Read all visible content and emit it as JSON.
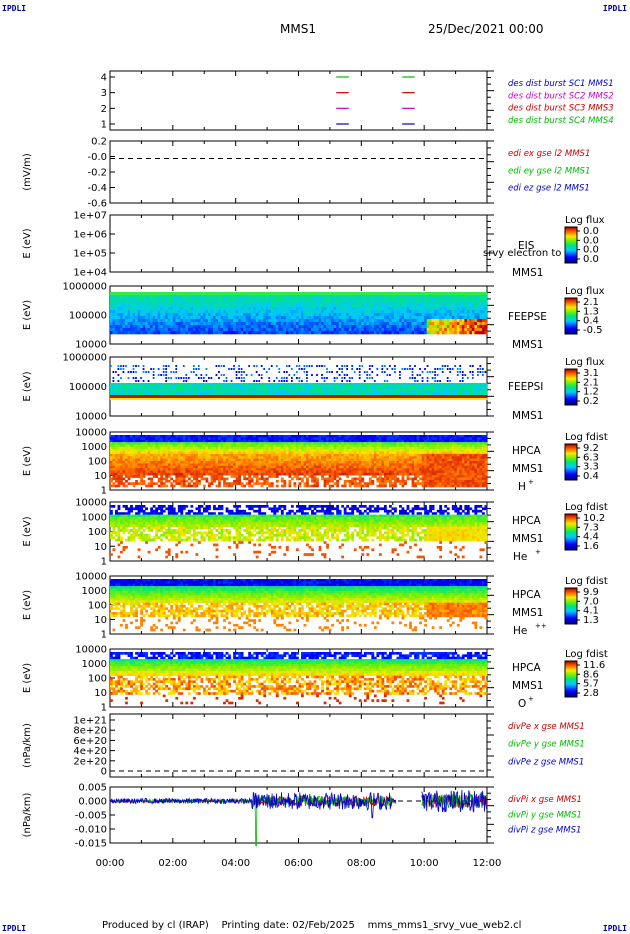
{
  "corner_labels": {
    "tl": "IPDLI",
    "tr": "IPDLI",
    "bl": "IPDLI",
    "br": "IPDLI"
  },
  "header": {
    "spacecraft": "MMS1",
    "date": "25/Dec/2021 00:00"
  },
  "footer": {
    "text": "Produced by cl (IRAP)    Printing date: 02/Feb/2025    mms_mms1_srvy_vue_web2.cl"
  },
  "x_ticks": [
    "00:00",
    "02:00",
    "04:00",
    "06:00",
    "08:00",
    "10:00",
    "12:00"
  ],
  "panels": [
    {
      "id": "burst",
      "ylabel": "",
      "yticks": [
        "4",
        "3",
        "2",
        "1"
      ],
      "legend": [
        {
          "text": "des dist burst SC1 MMS1",
          "color": "#0000cc"
        },
        {
          "text": "des dist burst SC2 MMS2",
          "color": "#cc00cc"
        },
        {
          "text": "des dist burst SC3 MMS3",
          "color": "#cc0000"
        },
        {
          "text": "des dist burst SC4 MMS4",
          "color": "#00bb00"
        }
      ]
    },
    {
      "id": "edi",
      "ylabel": "(mV/m)",
      "yticks": [
        "0.2",
        "-0.0",
        "-0.2",
        "-0.4",
        "-0.6"
      ],
      "legend": [
        {
          "text": "edi ex gse l2 MMS1",
          "color": "#cc0000"
        },
        {
          "text": "edi ey gse l2 MMS1",
          "color": "#00bb00"
        },
        {
          "text": "edi ez gse l2 MMS1",
          "color": "#0000cc"
        }
      ]
    },
    {
      "id": "eis",
      "ylabel": "E (eV)",
      "yticks": [
        "1e+07",
        "1e+06",
        "1e+05",
        "1e+04"
      ],
      "labels": [
        "EIS",
        "srvy electron to",
        "MMS1"
      ],
      "colorbar": {
        "title": "Log flux",
        "ticks": [
          "0.0",
          "0.0",
          "0.0",
          "0.0"
        ]
      }
    },
    {
      "id": "feeps_e",
      "ylabel": "E (eV)",
      "yticks": [
        "1000000",
        "100000",
        "10000"
      ],
      "labels": [
        "FEEPSE",
        "MMS1"
      ],
      "colorbar": {
        "title": "Log flux",
        "ticks": [
          "2.1",
          "1.3",
          "0.4",
          "-0.5"
        ]
      }
    },
    {
      "id": "feeps_i",
      "ylabel": "E (eV)",
      "yticks": [
        "1000000",
        "100000",
        "10000"
      ],
      "labels": [
        "FEEPSI",
        "MMS1"
      ],
      "colorbar": {
        "title": "Log flux",
        "ticks": [
          "3.1",
          "2.1",
          "1.2",
          "0.2"
        ]
      }
    },
    {
      "id": "hpca_h",
      "ylabel": "E (eV)",
      "yticks": [
        "10000",
        "1000",
        "100",
        "10",
        "1"
      ],
      "labels": [
        "HPCA",
        "MMS1",
        "H",
        "+"
      ],
      "colorbar": {
        "title": "Log fdist",
        "ticks": [
          "9.2",
          "6.3",
          "3.3",
          "0.4"
        ]
      }
    },
    {
      "id": "hpca_he1",
      "ylabel": "E (eV)",
      "yticks": [
        "10000",
        "1000",
        "100",
        "10",
        "1"
      ],
      "labels": [
        "HPCA",
        "MMS1",
        "He",
        "+"
      ],
      "colorbar": {
        "title": "Log fdist",
        "ticks": [
          "10.2",
          "7.3",
          "4.4",
          "1.6"
        ]
      }
    },
    {
      "id": "hpca_he2",
      "ylabel": "E (eV)",
      "yticks": [
        "10000",
        "1000",
        "100",
        "10",
        "1"
      ],
      "labels": [
        "HPCA",
        "MMS1",
        "He",
        "++"
      ],
      "colorbar": {
        "title": "Log fdist",
        "ticks": [
          "9.9",
          "7.0",
          "4.1",
          "1.3"
        ]
      }
    },
    {
      "id": "hpca_o",
      "ylabel": "E (eV)",
      "yticks": [
        "10000",
        "1000",
        "100",
        "10",
        "1"
      ],
      "labels": [
        "HPCA",
        "MMS1",
        "O",
        "+"
      ],
      "colorbar": {
        "title": "Log fdist",
        "ticks": [
          "11.6",
          "8.6",
          "5.7",
          "2.8"
        ]
      }
    },
    {
      "id": "divpe",
      "ylabel": "(nPa/km)",
      "yticks": [
        "1e+21",
        "8e+20",
        "6e+20",
        "4e+20",
        "2e+20",
        "0"
      ],
      "legend": [
        {
          "text": "divPe x gse MMS1",
          "color": "#cc0000"
        },
        {
          "text": "divPe y gse MMS1",
          "color": "#00bb00"
        },
        {
          "text": "divPe z gse MMS1",
          "color": "#0000cc"
        }
      ]
    },
    {
      "id": "divpi",
      "ylabel": "(nPa/km)",
      "yticks": [
        "0.005",
        "0.000",
        "-0.005",
        "-0.010",
        "-0.015"
      ],
      "legend": [
        {
          "text": "divPi x gse MMS1",
          "color": "#cc0000"
        },
        {
          "text": "divPi y gse MMS1",
          "color": "#00bb00"
        },
        {
          "text": "divPi z gse MMS1",
          "color": "#0000cc"
        }
      ]
    }
  ],
  "chart_data": {
    "type": "heatmap",
    "x_range_hours": [
      0,
      12
    ],
    "burst_intervals_hours": [
      [
        7.2,
        7.6
      ],
      [
        9.3,
        9.7
      ]
    ],
    "edi": {
      "ylim": [
        -0.6,
        0.2
      ],
      "reference_line": 0.0
    },
    "eis": {
      "ylim": [
        10000,
        10000000
      ],
      "log": true
    },
    "feeps_e": {
      "ylim": [
        10000,
        1000000
      ],
      "log": true
    },
    "feeps_i": {
      "ylim": [
        10000,
        1000000
      ],
      "log": true
    },
    "hpca_h": {
      "ylim": [
        1,
        10000
      ],
      "log": true
    },
    "hpca_he1": {
      "ylim": [
        1,
        10000
      ],
      "log": true
    },
    "hpca_he2": {
      "ylim": [
        1,
        10000
      ],
      "log": true
    },
    "hpca_o": {
      "ylim": [
        1,
        10000
      ],
      "log": true
    },
    "divpe": {
      "ylim": [
        0,
        1e+21
      ],
      "reference_line": 0
    },
    "divpi": {
      "ylim": [
        -0.015,
        0.005
      ],
      "reference_line": 0.0,
      "data_gap_hours": [
        9.1,
        9.9
      ]
    }
  }
}
